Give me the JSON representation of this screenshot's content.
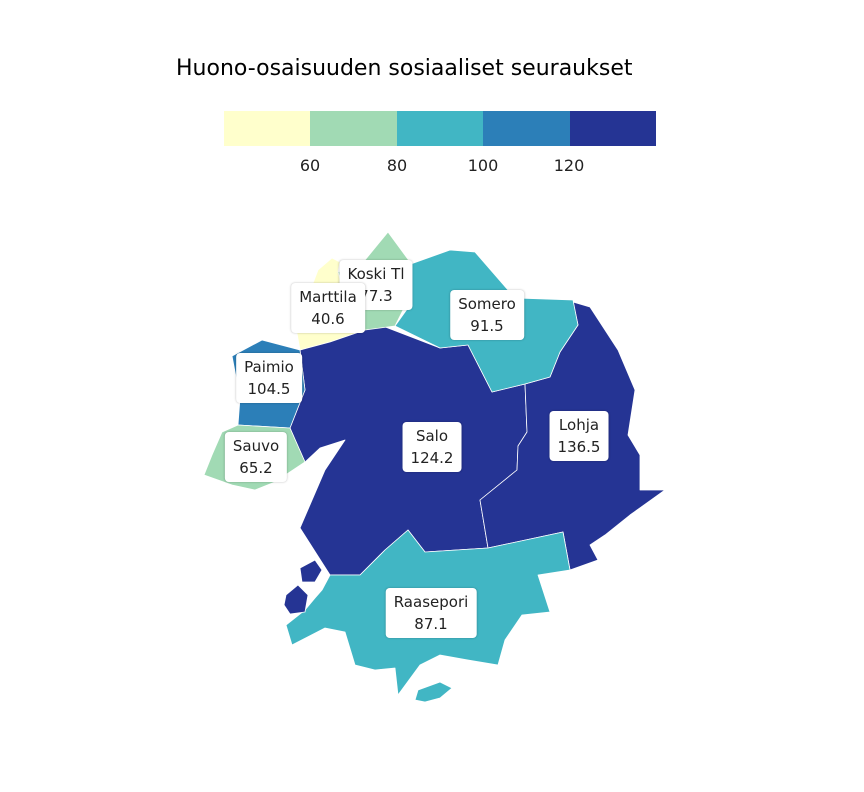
{
  "title": "Huono-osaisuuden sosiaaliset seuraukset",
  "legend": {
    "ticks": [
      "60",
      "80",
      "100",
      "120"
    ],
    "colors": [
      "#ffffcc",
      "#a1dab4",
      "#41b6c4",
      "#2c7fb8",
      "#253494"
    ]
  },
  "regions": [
    {
      "name": "Koski Tl",
      "value": "77.3",
      "color": "#a1dab4"
    },
    {
      "name": "Marttila",
      "value": "40.6",
      "color": "#ffffcc"
    },
    {
      "name": "Somero",
      "value": "91.5",
      "color": "#41b6c4"
    },
    {
      "name": "Paimio",
      "value": "104.5",
      "color": "#2c7fb8"
    },
    {
      "name": "Sauvo",
      "value": "65.2",
      "color": "#a1dab4"
    },
    {
      "name": "Salo",
      "value": "124.2",
      "color": "#253494"
    },
    {
      "name": "Lohja",
      "value": "136.5",
      "color": "#253494"
    },
    {
      "name": "Raasepori",
      "value": "87.1",
      "color": "#41b6c4"
    }
  ]
}
